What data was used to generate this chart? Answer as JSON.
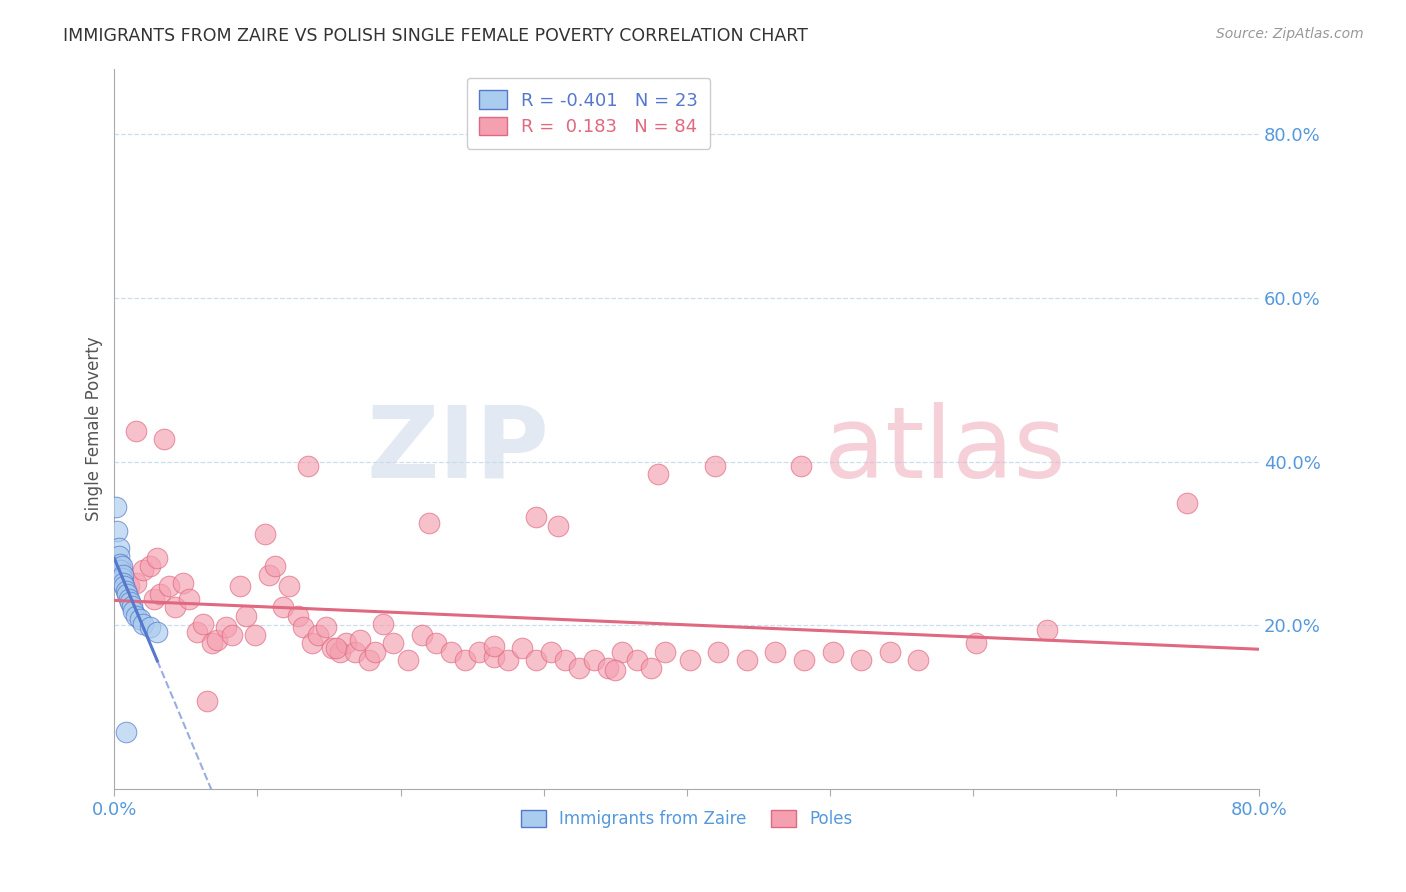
{
  "title": "IMMIGRANTS FROM ZAIRE VS POLISH SINGLE FEMALE POVERTY CORRELATION CHART",
  "source": "Source: ZipAtlas.com",
  "ylabel": "Single Female Poverty",
  "legend_label1": "Immigrants from Zaire",
  "legend_label2": "Poles",
  "r1": "-0.401",
  "n1": "23",
  "r2": "0.183",
  "n2": "84",
  "color1": "#aaccee",
  "color2": "#f4a0b0",
  "line1_color": "#5577cc",
  "line2_color": "#e06880",
  "background_color": "#ffffff",
  "grid_color": "#ccddee",
  "axis_label_color": "#5599dd",
  "title_color": "#333333",
  "source_color": "#999999",
  "watermark_zip_color": "#ccd8e8",
  "watermark_atlas_color": "#f0aab8",
  "xlim": [
    0.0,
    0.8
  ],
  "ylim": [
    0.0,
    0.88
  ],
  "xticks": [
    0.0,
    0.1,
    0.2,
    0.3,
    0.4,
    0.5,
    0.6,
    0.7,
    0.8
  ],
  "yticks_right": [
    0.2,
    0.4,
    0.6,
    0.8
  ],
  "blue_scatter_x": [
    0.001,
    0.002,
    0.003,
    0.003,
    0.004,
    0.004,
    0.005,
    0.005,
    0.006,
    0.006,
    0.007,
    0.008,
    0.009,
    0.01,
    0.011,
    0.012,
    0.013,
    0.015,
    0.018,
    0.02,
    0.025,
    0.03,
    0.008
  ],
  "blue_scatter_y": [
    0.345,
    0.315,
    0.295,
    0.285,
    0.275,
    0.268,
    0.272,
    0.258,
    0.262,
    0.252,
    0.248,
    0.242,
    0.238,
    0.232,
    0.228,
    0.224,
    0.218,
    0.212,
    0.208,
    0.202,
    0.198,
    0.192,
    0.07
  ],
  "pink_scatter_x": [
    0.005,
    0.01,
    0.015,
    0.02,
    0.025,
    0.028,
    0.03,
    0.032,
    0.038,
    0.042,
    0.048,
    0.052,
    0.058,
    0.062,
    0.068,
    0.072,
    0.078,
    0.082,
    0.088,
    0.092,
    0.098,
    0.105,
    0.108,
    0.112,
    0.118,
    0.122,
    0.128,
    0.132,
    0.138,
    0.142,
    0.148,
    0.152,
    0.158,
    0.162,
    0.168,
    0.172,
    0.178,
    0.182,
    0.188,
    0.195,
    0.205,
    0.215,
    0.225,
    0.235,
    0.245,
    0.255,
    0.265,
    0.275,
    0.285,
    0.295,
    0.305,
    0.315,
    0.325,
    0.335,
    0.345,
    0.355,
    0.365,
    0.375,
    0.385,
    0.402,
    0.422,
    0.442,
    0.462,
    0.482,
    0.502,
    0.522,
    0.542,
    0.562,
    0.602,
    0.652,
    0.48,
    0.38,
    0.22,
    0.135,
    0.42,
    0.295,
    0.35,
    0.31,
    0.265,
    0.155,
    0.065,
    0.035,
    0.015,
    0.75
  ],
  "pink_scatter_y": [
    0.268,
    0.248,
    0.252,
    0.268,
    0.272,
    0.232,
    0.282,
    0.238,
    0.248,
    0.222,
    0.252,
    0.232,
    0.192,
    0.202,
    0.178,
    0.182,
    0.198,
    0.188,
    0.248,
    0.212,
    0.188,
    0.312,
    0.262,
    0.272,
    0.222,
    0.248,
    0.212,
    0.198,
    0.178,
    0.188,
    0.198,
    0.172,
    0.168,
    0.178,
    0.168,
    0.182,
    0.158,
    0.168,
    0.202,
    0.178,
    0.158,
    0.188,
    0.178,
    0.168,
    0.158,
    0.168,
    0.162,
    0.158,
    0.172,
    0.158,
    0.168,
    0.158,
    0.148,
    0.158,
    0.148,
    0.168,
    0.158,
    0.148,
    0.168,
    0.158,
    0.168,
    0.158,
    0.168,
    0.158,
    0.168,
    0.158,
    0.168,
    0.158,
    0.178,
    0.195,
    0.395,
    0.385,
    0.325,
    0.395,
    0.395,
    0.332,
    0.145,
    0.322,
    0.175,
    0.172,
    0.108,
    0.428,
    0.438,
    0.35
  ]
}
